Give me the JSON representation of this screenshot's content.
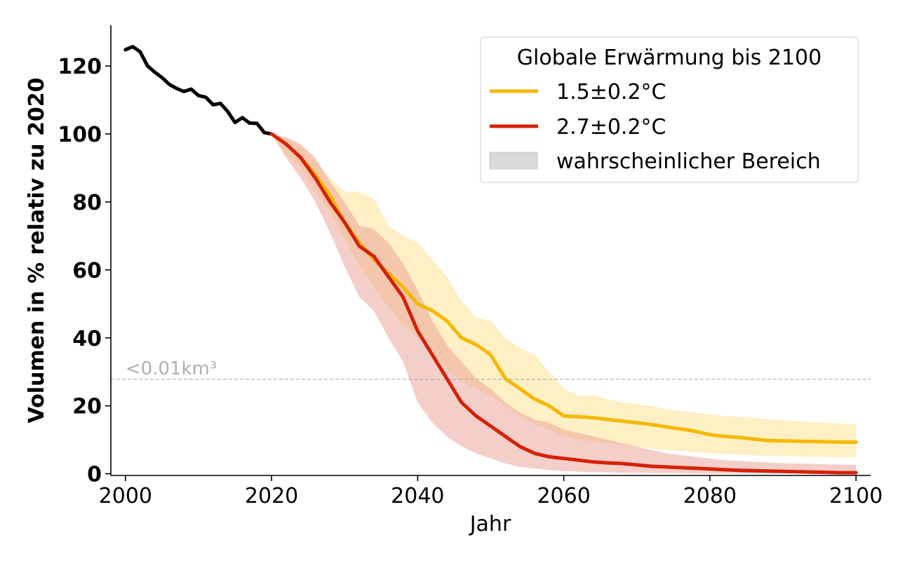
{
  "chart_data": {
    "type": "line",
    "xlabel": "Jahr",
    "ylabel": "Volumen in % relativ zu 2020",
    "xlim": [
      1998,
      2102
    ],
    "ylim": [
      -0.5,
      132
    ],
    "x_ticks": [
      2000,
      2020,
      2040,
      2060,
      2080,
      2100
    ],
    "y_ticks": [
      0,
      20,
      40,
      60,
      80,
      100,
      120
    ],
    "grid": false,
    "legend": {
      "title": "Globale Erwärmung bis 2100",
      "placement": "top-right",
      "entries": [
        "1.5±0.2°C",
        "2.7±0.2°C",
        "wahrscheinlicher Bereich"
      ]
    },
    "threshold": {
      "y": 27.8,
      "label": "<0.01km³",
      "color": "#b0b0b0"
    },
    "colors": {
      "historic": "#000000",
      "s15": "#f5b800",
      "s15_band": "#fde9b0",
      "s27": "#d62008",
      "s27_band": "#eba59a",
      "legend_band": "#d9d9d9"
    },
    "historic": {
      "x": [
        2000,
        2001,
        2002,
        2003,
        2004,
        2005,
        2006,
        2007,
        2008,
        2009,
        2010,
        2011,
        2012,
        2013,
        2014,
        2015,
        2016,
        2017,
        2018,
        2019,
        2020
      ],
      "y": [
        124.8,
        125.7,
        124.2,
        120.1,
        118.2,
        116.6,
        114.6,
        113.4,
        112.5,
        113.2,
        111.3,
        110.8,
        108.6,
        109.0,
        106.6,
        103.4,
        104.8,
        103.2,
        103.1,
        100.4,
        100.0
      ]
    },
    "series": [
      {
        "name": "1.5±0.2°C",
        "x": [
          2020,
          2022,
          2024,
          2026,
          2028,
          2030,
          2032,
          2034,
          2036,
          2038,
          2040,
          2042,
          2044,
          2046,
          2048,
          2050,
          2052,
          2054,
          2056,
          2058,
          2060,
          2062,
          2064,
          2066,
          2068,
          2070,
          2072,
          2074,
          2076,
          2078,
          2080,
          2082,
          2084,
          2086,
          2088,
          2090,
          2092,
          2094,
          2096,
          2098,
          2100
        ],
        "y": [
          100,
          97,
          93,
          88,
          82,
          74,
          68,
          63,
          59,
          55,
          50,
          48,
          45,
          40,
          38,
          35,
          28,
          25,
          22,
          20,
          17,
          16.8,
          16.5,
          16,
          15.5,
          15,
          14.5,
          13.8,
          13.2,
          12.5,
          11.5,
          11,
          10.7,
          10.2,
          9.8,
          9.7,
          9.6,
          9.5,
          9.4,
          9.3,
          9.3
        ],
        "lower": [
          100,
          94,
          90,
          83,
          77,
          69,
          61,
          55,
          49,
          44,
          40,
          35,
          31,
          27,
          25,
          23,
          20,
          17,
          14.5,
          13,
          11,
          10,
          9.5,
          9,
          8.5,
          8,
          7.5,
          7,
          6.8,
          6.4,
          6,
          5.8,
          5.6,
          5.4,
          5.3,
          5.2,
          5.1,
          5.0,
          5.0,
          4.9,
          4.9
        ],
        "upper": [
          100,
          99,
          96,
          92,
          87,
          83,
          83,
          81,
          73,
          70,
          68,
          63,
          58,
          51,
          46,
          45,
          40,
          37,
          35,
          30,
          25,
          23,
          23,
          22,
          21,
          20.5,
          20,
          19,
          18.5,
          18,
          17.5,
          17,
          16.8,
          16.5,
          16,
          15.8,
          15.5,
          15.2,
          15,
          14.8,
          14.5
        ]
      },
      {
        "name": "2.7±0.2°C",
        "x": [
          2020,
          2022,
          2024,
          2026,
          2028,
          2030,
          2032,
          2034,
          2036,
          2038,
          2040,
          2042,
          2044,
          2046,
          2048,
          2050,
          2052,
          2054,
          2056,
          2058,
          2060,
          2062,
          2064,
          2066,
          2068,
          2070,
          2072,
          2074,
          2076,
          2078,
          2080,
          2082,
          2084,
          2086,
          2088,
          2090,
          2092,
          2094,
          2096,
          2098,
          2100
        ],
        "y": [
          100,
          97,
          93,
          87,
          80,
          74,
          67,
          64,
          58,
          52,
          42,
          35,
          28,
          21,
          17,
          14,
          11,
          8,
          6,
          5,
          4.5,
          4,
          3.5,
          3.2,
          3,
          2.6,
          2.2,
          2,
          1.8,
          1.6,
          1.4,
          1.2,
          1.0,
          0.9,
          0.8,
          0.7,
          0.6,
          0.5,
          0.4,
          0.3,
          0.3
        ],
        "lower": [
          100,
          93,
          87,
          80,
          71,
          61,
          52,
          48,
          40,
          33,
          21,
          15,
          11,
          8,
          6,
          4.5,
          3,
          2,
          1.5,
          1.1,
          0.8,
          0.6,
          0.5,
          0.4,
          0.3,
          0.3,
          0.2,
          0.2,
          0.2,
          0.1,
          0.1,
          0.1,
          0.1,
          0.1,
          0.1,
          0.1,
          0.1,
          0.1,
          0.1,
          0.1,
          0.1
        ],
        "upper": [
          100,
          99,
          97,
          93,
          86,
          80,
          73,
          72,
          68,
          62,
          54,
          45,
          38,
          33,
          28,
          25,
          21,
          18,
          16,
          15,
          13,
          12,
          11,
          10,
          9,
          8,
          7,
          6,
          5.5,
          5,
          4.5,
          4,
          3.8,
          3.5,
          3.3,
          3.1,
          3,
          2.9,
          2.8,
          2.7,
          2.6
        ]
      }
    ]
  }
}
